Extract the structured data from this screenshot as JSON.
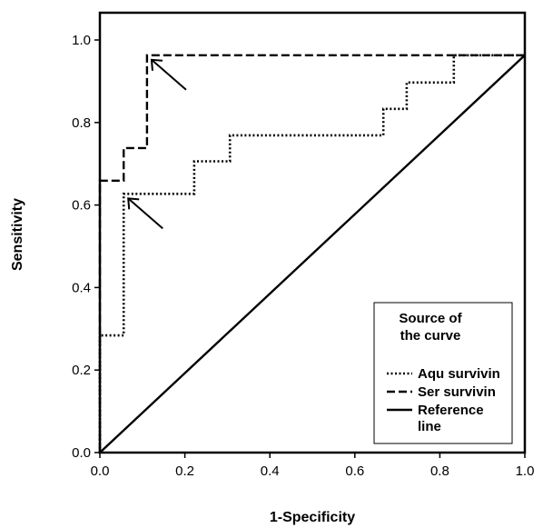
{
  "chart_data": {
    "type": "line",
    "title": "",
    "xlabel": "1-Specificity",
    "ylabel": "Sensitivity",
    "xlim": [
      0,
      1
    ],
    "ylim": [
      0,
      1.05
    ],
    "x_ticks": [
      "0.0",
      "0.2",
      "0.4",
      "0.6",
      "0.8",
      "1.0"
    ],
    "y_ticks": [
      "0.0",
      "0.2",
      "0.4",
      "0.6",
      "0.8",
      "1.0"
    ],
    "grid": false,
    "legend": {
      "title_line1": "Source of",
      "title_line2": "the curve",
      "placement": "bottom-right",
      "entries": [
        {
          "lines": [
            "Aqu survivin"
          ],
          "style": "dotted"
        },
        {
          "lines": [
            "Ser survivin"
          ],
          "style": "dashed"
        },
        {
          "lines": [
            "Reference",
            "line"
          ],
          "style": "solid"
        }
      ]
    },
    "series": [
      {
        "name": "Aqu survivin",
        "style": "dotted",
        "x": [
          0,
          0,
          0.056,
          0.056,
          0.222,
          0.222,
          0.25,
          0.25,
          0.306,
          0.306,
          0.667,
          0.667,
          0.722,
          0.722,
          0.833,
          0.833,
          1.0
        ],
        "y": [
          0,
          0.284,
          0.284,
          0.627,
          0.627,
          0.706,
          0.706,
          0.706,
          0.706,
          0.769,
          0.769,
          0.833,
          0.833,
          0.897,
          0.897,
          0.963,
          0.963
        ]
      },
      {
        "name": "Ser survivin",
        "style": "dashed",
        "x": [
          0,
          0,
          0.028,
          0.028,
          0.056,
          0.056,
          0.111,
          0.111,
          1.0
        ],
        "y": [
          0,
          0.659,
          0.659,
          0.659,
          0.659,
          0.738,
          0.738,
          0.963,
          0.963
        ]
      },
      {
        "name": "Reference line",
        "style": "solid",
        "x": [
          0,
          1.0
        ],
        "y": [
          0,
          0.963
        ]
      }
    ],
    "annotations": [
      {
        "type": "arrow",
        "target_x": 0.111,
        "target_y": 0.963
      },
      {
        "type": "arrow",
        "target_x": 0.056,
        "target_y": 0.627
      }
    ]
  }
}
